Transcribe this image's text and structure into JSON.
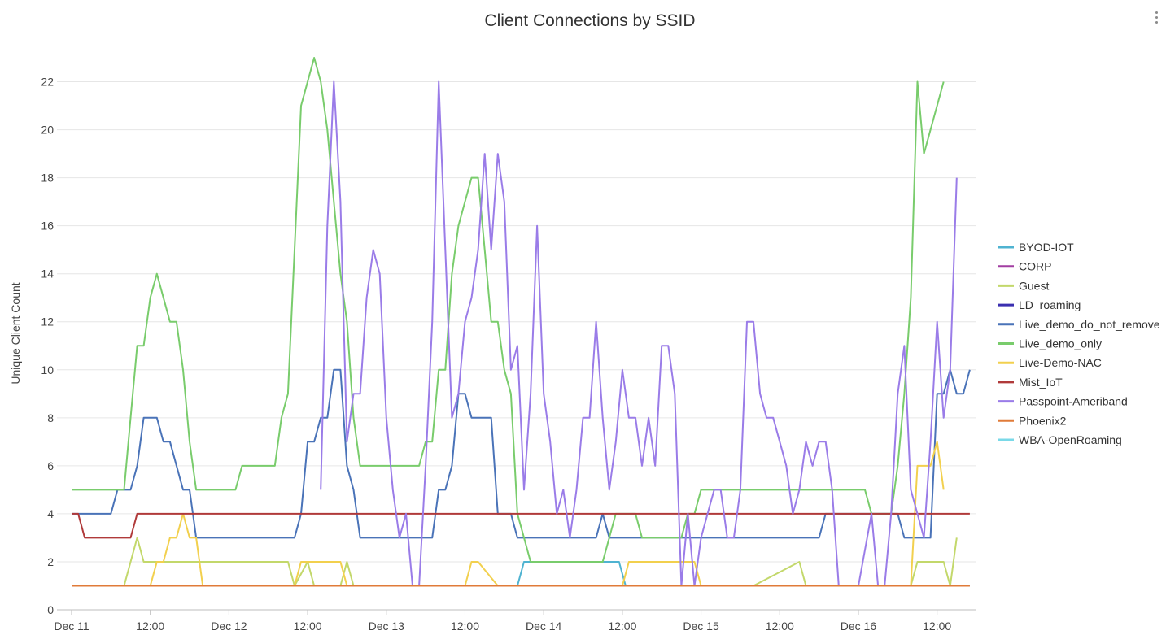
{
  "title": "Client Connections by SSID",
  "menu_icon": "more-vert-icon",
  "chart_data": {
    "type": "line",
    "title": "Client Connections by SSID",
    "ylabel": "Unique Client Count",
    "xlabel": "",
    "ylim": [
      0,
      23
    ],
    "yticks": [
      0,
      2,
      4,
      6,
      8,
      10,
      12,
      14,
      16,
      18,
      20,
      22
    ],
    "x_unit": "hours since Dec 11 00:00",
    "xlim": [
      0,
      138
    ],
    "xticks": [
      {
        "t": 0,
        "label": "Dec 11"
      },
      {
        "t": 12,
        "label": "12:00"
      },
      {
        "t": 24,
        "label": "Dec 12"
      },
      {
        "t": 36,
        "label": "12:00"
      },
      {
        "t": 48,
        "label": "Dec 13"
      },
      {
        "t": 60,
        "label": "12:00"
      },
      {
        "t": 72,
        "label": "Dec 14"
      },
      {
        "t": 84,
        "label": "12:00"
      },
      {
        "t": 96,
        "label": "Dec 15"
      },
      {
        "t": 108,
        "label": "12:00"
      },
      {
        "t": 120,
        "label": "Dec 16"
      },
      {
        "t": 132,
        "label": "12:00"
      }
    ],
    "grid": true,
    "legend": "right",
    "series": [
      {
        "name": "BYOD-IOT",
        "color": "#4fb3d1",
        "points": [
          [
            28,
            1
          ],
          [
            68,
            1
          ],
          [
            69,
            2
          ],
          [
            83.5,
            2
          ],
          [
            84.5,
            1
          ],
          [
            137,
            1
          ]
        ]
      },
      {
        "name": "CORP",
        "color": "#a23ea2",
        "points": []
      },
      {
        "name": "Guest",
        "color": "#c3d86b",
        "points": [
          [
            0,
            1
          ],
          [
            8,
            1
          ],
          [
            10,
            3
          ],
          [
            11,
            2
          ],
          [
            14,
            2
          ],
          [
            33,
            2
          ],
          [
            34,
            1
          ],
          [
            36,
            2
          ],
          [
            37,
            1
          ],
          [
            41,
            1
          ],
          [
            42,
            2
          ],
          [
            43,
            1
          ],
          [
            104,
            1
          ],
          [
            111,
            2
          ],
          [
            112,
            1
          ],
          [
            128,
            1
          ],
          [
            129,
            2
          ],
          [
            133,
            2
          ],
          [
            134,
            1
          ],
          [
            135,
            3
          ]
        ]
      },
      {
        "name": "LD_roaming",
        "color": "#3b2fb0",
        "points": []
      },
      {
        "name": "Live_demo_do_not_remove",
        "color": "#4a73b8",
        "points": [
          [
            0,
            4
          ],
          [
            6,
            4
          ],
          [
            7,
            5
          ],
          [
            9,
            5
          ],
          [
            10,
            6
          ],
          [
            11,
            8
          ],
          [
            13,
            8
          ],
          [
            14,
            7
          ],
          [
            15,
            7
          ],
          [
            17,
            5
          ],
          [
            18,
            5
          ],
          [
            19,
            3
          ],
          [
            34,
            3
          ],
          [
            35,
            4
          ],
          [
            36,
            7
          ],
          [
            37,
            7
          ],
          [
            38,
            8
          ],
          [
            39,
            8
          ],
          [
            40,
            10
          ],
          [
            41,
            10
          ],
          [
            42,
            6
          ],
          [
            43,
            5
          ],
          [
            44,
            3
          ],
          [
            55,
            3
          ],
          [
            56,
            5
          ],
          [
            57,
            5
          ],
          [
            58,
            6
          ],
          [
            59,
            9
          ],
          [
            60,
            9
          ],
          [
            61,
            8
          ],
          [
            64,
            8
          ],
          [
            65,
            4
          ],
          [
            67,
            4
          ],
          [
            68,
            3
          ],
          [
            80,
            3
          ],
          [
            81,
            4
          ],
          [
            82,
            3
          ],
          [
            110,
            3
          ],
          [
            112,
            3
          ],
          [
            114,
            3
          ],
          [
            115,
            4
          ],
          [
            126,
            4
          ],
          [
            127,
            3
          ],
          [
            131,
            3
          ],
          [
            132,
            9
          ],
          [
            133,
            9
          ],
          [
            134,
            10
          ],
          [
            135,
            9
          ],
          [
            136,
            9
          ],
          [
            137,
            10
          ]
        ]
      },
      {
        "name": "Live_demo_only",
        "color": "#79cc6c",
        "points": [
          [
            0,
            5
          ],
          [
            8,
            5
          ],
          [
            9,
            8
          ],
          [
            10,
            11
          ],
          [
            11,
            11
          ],
          [
            12,
            13
          ],
          [
            13,
            14
          ],
          [
            15,
            12
          ],
          [
            16,
            12
          ],
          [
            17,
            10
          ],
          [
            18,
            7
          ],
          [
            19,
            5
          ],
          [
            25,
            5
          ],
          [
            26,
            6
          ],
          [
            31,
            6
          ],
          [
            32,
            8
          ],
          [
            33,
            9
          ],
          [
            34,
            15
          ],
          [
            35,
            21
          ],
          [
            37,
            23
          ],
          [
            38,
            22
          ],
          [
            39,
            20
          ],
          [
            40,
            17
          ],
          [
            41,
            14
          ],
          [
            42,
            12
          ],
          [
            43,
            8
          ],
          [
            44,
            6
          ],
          [
            53,
            6
          ],
          [
            54,
            7
          ],
          [
            55,
            7
          ],
          [
            56,
            10
          ],
          [
            57,
            10
          ],
          [
            58,
            14
          ],
          [
            59,
            16
          ],
          [
            61,
            18
          ],
          [
            62,
            18
          ],
          [
            63,
            15
          ],
          [
            64,
            12
          ],
          [
            65,
            12
          ],
          [
            66,
            10
          ],
          [
            67,
            9
          ],
          [
            68,
            4
          ],
          [
            69,
            3
          ],
          [
            70,
            2
          ],
          [
            81,
            2
          ],
          [
            82,
            3
          ],
          [
            83,
            4
          ],
          [
            86,
            4
          ],
          [
            87,
            3
          ],
          [
            93,
            3
          ],
          [
            94,
            4
          ],
          [
            95,
            4
          ],
          [
            96,
            5
          ],
          [
            121,
            5
          ],
          [
            122,
            4
          ],
          [
            125,
            4
          ],
          [
            126,
            6
          ],
          [
            127,
            9
          ],
          [
            128,
            13
          ],
          [
            129,
            22
          ],
          [
            130,
            19
          ],
          [
            132,
            21
          ],
          [
            133,
            22
          ]
        ]
      },
      {
        "name": "Live-Demo-NAC",
        "color": "#f2d04e",
        "points": [
          [
            0,
            1
          ],
          [
            12,
            1
          ],
          [
            13,
            2
          ],
          [
            14,
            2
          ],
          [
            15,
            3
          ],
          [
            16,
            3
          ],
          [
            17,
            4
          ],
          [
            18,
            3
          ],
          [
            19,
            3
          ],
          [
            20,
            1
          ],
          [
            28,
            1
          ],
          [
            34,
            1
          ],
          [
            35,
            2
          ],
          [
            41,
            2
          ],
          [
            42,
            1
          ],
          [
            60,
            1
          ],
          [
            61,
            2
          ],
          [
            62,
            2
          ],
          [
            65,
            1
          ],
          [
            68,
            1
          ],
          [
            83,
            1
          ],
          [
            84,
            1
          ],
          [
            85,
            2
          ],
          [
            86,
            2
          ],
          [
            95,
            2
          ],
          [
            96,
            1
          ],
          [
            110,
            1
          ],
          [
            128,
            1
          ],
          [
            129,
            6
          ],
          [
            131,
            6
          ],
          [
            132,
            7
          ],
          [
            133,
            5
          ]
        ]
      },
      {
        "name": "Mist_IoT",
        "color": "#b03a3a",
        "points": [
          [
            0,
            4
          ],
          [
            1,
            4
          ],
          [
            2,
            3
          ],
          [
            9,
            3
          ],
          [
            10,
            4
          ],
          [
            137,
            4
          ]
        ]
      },
      {
        "name": "Passpoint-Ameriband",
        "color": "#9a7ce8",
        "points": [
          [
            38,
            5
          ],
          [
            39,
            16
          ],
          [
            40,
            22
          ],
          [
            41,
            17
          ],
          [
            42,
            7
          ],
          [
            43,
            9
          ],
          [
            44,
            9
          ],
          [
            45,
            13
          ],
          [
            46,
            15
          ],
          [
            47,
            14
          ],
          [
            48,
            8
          ],
          [
            49,
            5
          ],
          [
            50,
            3
          ],
          [
            51,
            4
          ],
          [
            52,
            1
          ],
          [
            53,
            1
          ],
          [
            54,
            6
          ],
          [
            55,
            12
          ],
          [
            56,
            22
          ],
          [
            57,
            15
          ],
          [
            58,
            8
          ],
          [
            59,
            9
          ],
          [
            60,
            12
          ],
          [
            61,
            13
          ],
          [
            62,
            15
          ],
          [
            63,
            19
          ],
          [
            64,
            15
          ],
          [
            65,
            19
          ],
          [
            66,
            17
          ],
          [
            67,
            10
          ],
          [
            68,
            11
          ],
          [
            69,
            5
          ],
          [
            70,
            9
          ],
          [
            71,
            16
          ],
          [
            72,
            9
          ],
          [
            73,
            7
          ],
          [
            74,
            4
          ],
          [
            75,
            5
          ],
          [
            76,
            3
          ],
          [
            77,
            5
          ],
          [
            78,
            8
          ],
          [
            79,
            8
          ],
          [
            80,
            12
          ],
          [
            81,
            8
          ],
          [
            82,
            5
          ],
          [
            83,
            7
          ],
          [
            84,
            10
          ],
          [
            85,
            8
          ],
          [
            86,
            8
          ],
          [
            87,
            6
          ],
          [
            88,
            8
          ],
          [
            89,
            6
          ],
          [
            90,
            11
          ],
          [
            91,
            11
          ],
          [
            92,
            9
          ],
          [
            93,
            1
          ],
          [
            94,
            4
          ],
          [
            95,
            1
          ],
          [
            96,
            3
          ],
          [
            97,
            4
          ],
          [
            98,
            5
          ],
          [
            99,
            5
          ],
          [
            100,
            3
          ],
          [
            101,
            3
          ],
          [
            102,
            5
          ],
          [
            103,
            12
          ],
          [
            104,
            12
          ],
          [
            105,
            9
          ],
          [
            106,
            8
          ],
          [
            107,
            8
          ],
          [
            108,
            7
          ],
          [
            109,
            6
          ],
          [
            110,
            4
          ],
          [
            111,
            5
          ],
          [
            112,
            7
          ],
          [
            113,
            6
          ],
          [
            114,
            7
          ],
          [
            115,
            7
          ],
          [
            116,
            5
          ],
          [
            117,
            1
          ],
          [
            119,
            1
          ],
          [
            120,
            1
          ],
          [
            122,
            4
          ],
          [
            123,
            1
          ],
          [
            124,
            1
          ],
          [
            125,
            4
          ],
          [
            126,
            9
          ],
          [
            127,
            11
          ],
          [
            128,
            5
          ],
          [
            129,
            4
          ],
          [
            130,
            3
          ],
          [
            131,
            7
          ],
          [
            132,
            12
          ],
          [
            133,
            8
          ],
          [
            134,
            10
          ],
          [
            135,
            18
          ]
        ]
      },
      {
        "name": "Phoenix2",
        "color": "#e07b39",
        "points": [
          [
            0,
            1
          ],
          [
            137,
            1
          ]
        ]
      },
      {
        "name": "WBA-OpenRoaming",
        "color": "#7ad9e8",
        "points": []
      }
    ]
  }
}
